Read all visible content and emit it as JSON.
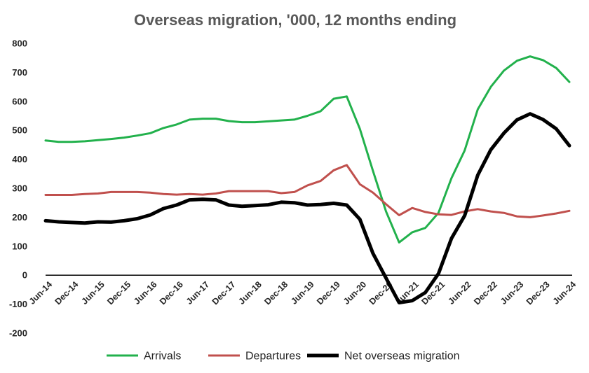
{
  "chart_data": {
    "type": "line",
    "title": "Overseas migration, '000, 12 months ending",
    "xlabel": "",
    "ylabel": "",
    "ylim": [
      -200,
      800
    ],
    "yticks": [
      800,
      700,
      600,
      500,
      400,
      300,
      200,
      100,
      0,
      -100,
      -200
    ],
    "x_tick_labels": [
      "Jun-14",
      "Dec-14",
      "Jun-15",
      "Dec-15",
      "Jun-16",
      "Dec-16",
      "Jun-17",
      "Dec-17",
      "Jun-18",
      "Dec-18",
      "Jun-19",
      "Dec-19",
      "Jun-20",
      "Dec-20",
      "Jun-21",
      "Dec-21",
      "Jun-22",
      "Dec-22",
      "Jun-23",
      "Dec-23",
      "Jun-24"
    ],
    "x_points": 41,
    "legend_position": "bottom",
    "series": [
      {
        "name": "Arrivals",
        "color": "#22b14c",
        "values": [
          465,
          460,
          460,
          462,
          466,
          470,
          475,
          482,
          490,
          508,
          520,
          537,
          540,
          540,
          532,
          528,
          528,
          531,
          534,
          537,
          550,
          566,
          609,
          617,
          505,
          360,
          220,
          113,
          148,
          163,
          215,
          335,
          430,
          572,
          650,
          706,
          740,
          755,
          742,
          715,
          667
        ]
      },
      {
        "name": "Departures",
        "color": "#c0504d",
        "values": [
          277,
          277,
          277,
          280,
          282,
          287,
          287,
          287,
          285,
          280,
          278,
          280,
          278,
          282,
          290,
          290,
          290,
          290,
          283,
          287,
          310,
          325,
          362,
          380,
          314,
          285,
          245,
          207,
          232,
          218,
          210,
          208,
          220,
          228,
          220,
          215,
          203,
          200,
          206,
          213,
          222
        ]
      },
      {
        "name": "Net overseas migration",
        "color": "#000000",
        "values": [
          188,
          184,
          182,
          180,
          184,
          183,
          188,
          195,
          208,
          230,
          242,
          260,
          262,
          260,
          242,
          238,
          240,
          243,
          252,
          250,
          242,
          244,
          248,
          242,
          193,
          75,
          -10,
          -95,
          -88,
          -60,
          5,
          127,
          205,
          345,
          433,
          490,
          536,
          557,
          537,
          505,
          447
        ]
      }
    ]
  }
}
